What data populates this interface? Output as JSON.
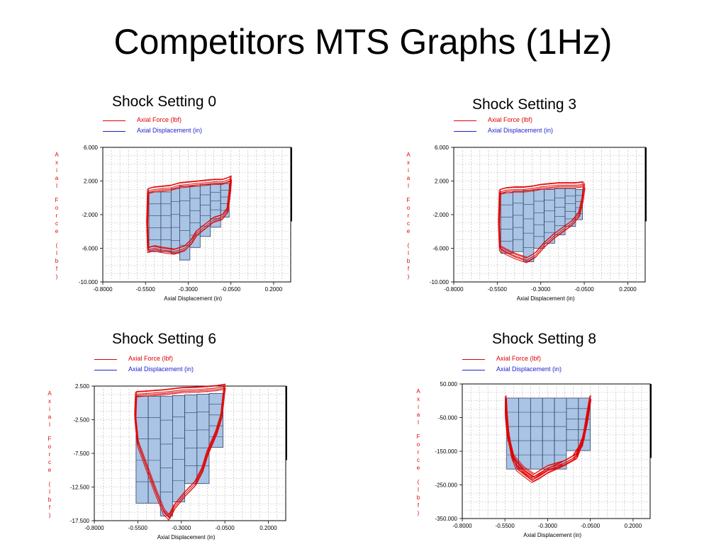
{
  "slide": {
    "title": "Competitors MTS Graphs (1Hz)"
  },
  "colors": {
    "force": "#e00000",
    "displacement": "#2222cc",
    "fill": "#a9c4e4",
    "grid": "#b5b5b5"
  },
  "chart_data": [
    {
      "type": "line",
      "panel_title": "Shock Setting 0",
      "legend": [
        "Axial Force  (lbf)",
        "Axial Displacement  (in)"
      ],
      "xlabel": "Axial Displacement (in)",
      "ylabel": "Axial Force (lbf)",
      "xlim": [
        -0.8,
        0.3
      ],
      "ylim": [
        -10,
        6
      ],
      "xticks": [
        "-0.8000",
        "-0.5500",
        "-0.3000",
        "-0.0500",
        "0.2000"
      ],
      "yticks": [
        "6.000",
        "2.000",
        "-2.000",
        "-6.000",
        "-10.000"
      ],
      "bars": [
        {
          "x0": -0.53,
          "x1": -0.46,
          "y0": -6.4,
          "y1": 0.7
        },
        {
          "x0": -0.46,
          "x1": -0.4,
          "y0": -6.4,
          "y1": 0.7
        },
        {
          "x0": -0.4,
          "x1": -0.35,
          "y0": -6.6,
          "y1": 1.1
        },
        {
          "x0": -0.35,
          "x1": -0.29,
          "y0": -7.4,
          "y1": 1.4
        },
        {
          "x0": -0.29,
          "x1": -0.23,
          "y0": -5.9,
          "y1": 1.4
        },
        {
          "x0": -0.23,
          "x1": -0.17,
          "y0": -4.6,
          "y1": 1.6
        },
        {
          "x0": -0.17,
          "x1": -0.11,
          "y0": -3.5,
          "y1": 1.7
        },
        {
          "x0": -0.11,
          "x1": -0.06,
          "y0": -2.3,
          "y1": 1.7
        }
      ],
      "loop": [
        [
          -0.535,
          0.8
        ],
        [
          -0.5,
          1.0
        ],
        [
          -0.45,
          1.1
        ],
        [
          -0.4,
          1.2
        ],
        [
          -0.35,
          1.5
        ],
        [
          -0.3,
          1.6
        ],
        [
          -0.25,
          1.7
        ],
        [
          -0.2,
          1.8
        ],
        [
          -0.15,
          1.9
        ],
        [
          -0.1,
          1.9
        ],
        [
          -0.07,
          2.1
        ],
        [
          -0.05,
          2.3
        ],
        [
          -0.055,
          1.0
        ],
        [
          -0.07,
          -1.5
        ],
        [
          -0.1,
          -2.3
        ],
        [
          -0.15,
          -2.6
        ],
        [
          -0.2,
          -3.4
        ],
        [
          -0.25,
          -4.2
        ],
        [
          -0.28,
          -5.2
        ],
        [
          -0.32,
          -6.0
        ],
        [
          -0.38,
          -6.4
        ],
        [
          -0.45,
          -6.2
        ],
        [
          -0.5,
          -6.0
        ],
        [
          -0.535,
          -6.2
        ],
        [
          -0.54,
          -3.0
        ],
        [
          -0.535,
          0.8
        ]
      ]
    },
    {
      "type": "line",
      "panel_title": "Shock Setting 3",
      "legend": [
        "Axial Force  (lbf)",
        "Axial Displacement  (in)"
      ],
      "xlabel": "Axial Displacement (in)",
      "ylabel": "Axial Force (lbf)",
      "xlim": [
        -0.8,
        0.3
      ],
      "ylim": [
        -10,
        6
      ],
      "xticks": [
        "-0.8000",
        "-0.5500",
        "-0.3000",
        "-0.0500",
        "0.2000"
      ],
      "yticks": [
        "6.000",
        "2.000",
        "-2.000",
        "-6.000",
        "-10.000"
      ],
      "bars": [
        {
          "x0": -0.53,
          "x1": -0.46,
          "y0": -6.6,
          "y1": 0.6
        },
        {
          "x0": -0.46,
          "x1": -0.4,
          "y0": -6.4,
          "y1": 0.8
        },
        {
          "x0": -0.4,
          "x1": -0.34,
          "y0": -7.6,
          "y1": 0.9
        },
        {
          "x0": -0.34,
          "x1": -0.28,
          "y0": -6.0,
          "y1": 1.0
        },
        {
          "x0": -0.28,
          "x1": -0.22,
          "y0": -5.4,
          "y1": 1.0
        },
        {
          "x0": -0.22,
          "x1": -0.16,
          "y0": -4.4,
          "y1": 1.1
        },
        {
          "x0": -0.16,
          "x1": -0.1,
          "y0": -3.4,
          "y1": 1.1
        },
        {
          "x0": -0.1,
          "x1": -0.06,
          "y0": -2.6,
          "y1": 1.0
        }
      ],
      "loop": [
        [
          -0.535,
          0.7
        ],
        [
          -0.5,
          0.9
        ],
        [
          -0.45,
          1.0
        ],
        [
          -0.4,
          1.0
        ],
        [
          -0.35,
          1.1
        ],
        [
          -0.3,
          1.3
        ],
        [
          -0.25,
          1.4
        ],
        [
          -0.2,
          1.5
        ],
        [
          -0.15,
          1.5
        ],
        [
          -0.1,
          1.5
        ],
        [
          -0.06,
          1.6
        ],
        [
          -0.05,
          1.3
        ],
        [
          -0.06,
          -0.2
        ],
        [
          -0.08,
          -2.0
        ],
        [
          -0.12,
          -3.0
        ],
        [
          -0.18,
          -3.9
        ],
        [
          -0.22,
          -4.5
        ],
        [
          -0.28,
          -5.6
        ],
        [
          -0.33,
          -6.8
        ],
        [
          -0.38,
          -7.4
        ],
        [
          -0.45,
          -6.9
        ],
        [
          -0.5,
          -6.4
        ],
        [
          -0.535,
          -6.0
        ],
        [
          -0.54,
          -3.0
        ],
        [
          -0.535,
          0.7
        ]
      ]
    },
    {
      "type": "line",
      "panel_title": "Shock Setting 6",
      "legend": [
        "Axial Force  (lbf)",
        "Axial Displacement  (in)"
      ],
      "xlabel": "Axial Displacement (in)",
      "ylabel": "Axial Force (lbf)",
      "xlim": [
        -0.8,
        0.3
      ],
      "ylim": [
        -17.5,
        2.5
      ],
      "xticks": [
        "-0.8000",
        "-0.5500",
        "-0.3000",
        "-0.0500",
        "0.2000"
      ],
      "yticks": [
        "2.500",
        "-2.500",
        "-7.500",
        "-12.500",
        "-17.500"
      ],
      "bars": [
        {
          "x0": -0.56,
          "x1": -0.49,
          "y0": -14.9,
          "y1": 1.0
        },
        {
          "x0": -0.49,
          "x1": -0.42,
          "y0": -14.9,
          "y1": 1.0
        },
        {
          "x0": -0.42,
          "x1": -0.35,
          "y0": -16.8,
          "y1": 1.0
        },
        {
          "x0": -0.35,
          "x1": -0.28,
          "y0": -14.7,
          "y1": 1.1
        },
        {
          "x0": -0.28,
          "x1": -0.21,
          "y0": -12.0,
          "y1": 1.2
        },
        {
          "x0": -0.21,
          "x1": -0.14,
          "y0": -12.0,
          "y1": 1.3
        },
        {
          "x0": -0.14,
          "x1": -0.06,
          "y0": -6.6,
          "y1": 1.4
        }
      ],
      "loop": [
        [
          -0.56,
          1.3
        ],
        [
          -0.5,
          1.4
        ],
        [
          -0.4,
          1.6
        ],
        [
          -0.3,
          1.9
        ],
        [
          -0.2,
          2.0
        ],
        [
          -0.1,
          2.2
        ],
        [
          -0.05,
          2.4
        ],
        [
          -0.055,
          1.5
        ],
        [
          -0.07,
          -2.0
        ],
        [
          -0.1,
          -4.5
        ],
        [
          -0.15,
          -7.5
        ],
        [
          -0.18,
          -10.0
        ],
        [
          -0.22,
          -12.0
        ],
        [
          -0.28,
          -13.6
        ],
        [
          -0.34,
          -15.5
        ],
        [
          -0.37,
          -17.0
        ],
        [
          -0.4,
          -16.2
        ],
        [
          -0.45,
          -13.0
        ],
        [
          -0.5,
          -9.5
        ],
        [
          -0.55,
          -6.0
        ],
        [
          -0.565,
          -2.0
        ],
        [
          -0.56,
          1.3
        ]
      ]
    },
    {
      "type": "line",
      "panel_title": "Shock Setting 8",
      "legend": [
        "Axial Force  (lbf)",
        "Axial Displacement  (in)"
      ],
      "xlabel": "Axial Displacement (in)",
      "ylabel": "Axial Force (lbf)",
      "xlim": [
        -0.8,
        0.3
      ],
      "ylim": [
        -350,
        50
      ],
      "xticks": [
        "-0.8000",
        "-0.5500",
        "-0.3000",
        "-0.0500",
        "0.2000"
      ],
      "yticks": [
        "50.000",
        "-50.000",
        "-150.000",
        "-250.000",
        "-350.000"
      ],
      "bars": [
        {
          "x0": -0.54,
          "x1": -0.47,
          "y0": -203,
          "y1": 8
        },
        {
          "x0": -0.47,
          "x1": -0.4,
          "y0": -203,
          "y1": 8
        },
        {
          "x0": -0.4,
          "x1": -0.33,
          "y0": -203,
          "y1": 8
        },
        {
          "x0": -0.33,
          "x1": -0.26,
          "y0": -203,
          "y1": 8
        },
        {
          "x0": -0.26,
          "x1": -0.19,
          "y0": -203,
          "y1": 8
        },
        {
          "x0": -0.19,
          "x1": -0.12,
          "y0": -148,
          "y1": 8
        },
        {
          "x0": -0.12,
          "x1": -0.05,
          "y0": -148,
          "y1": 8
        }
      ],
      "loop": [
        [
          -0.545,
          8
        ],
        [
          -0.54,
          -40
        ],
        [
          -0.53,
          -100
        ],
        [
          -0.51,
          -160
        ],
        [
          -0.48,
          -200
        ],
        [
          -0.43,
          -220
        ],
        [
          -0.39,
          -235
        ],
        [
          -0.35,
          -225
        ],
        [
          -0.3,
          -208
        ],
        [
          -0.22,
          -190
        ],
        [
          -0.15,
          -170
        ],
        [
          -0.1,
          -130
        ],
        [
          -0.07,
          -60
        ],
        [
          -0.05,
          8
        ],
        [
          -0.06,
          -20
        ],
        [
          -0.09,
          -110
        ],
        [
          -0.13,
          -165
        ],
        [
          -0.2,
          -185
        ],
        [
          -0.3,
          -200
        ],
        [
          -0.38,
          -225
        ],
        [
          -0.44,
          -205
        ],
        [
          -0.5,
          -170
        ],
        [
          -0.535,
          -100
        ],
        [
          -0.545,
          -40
        ],
        [
          -0.545,
          8
        ]
      ]
    }
  ]
}
